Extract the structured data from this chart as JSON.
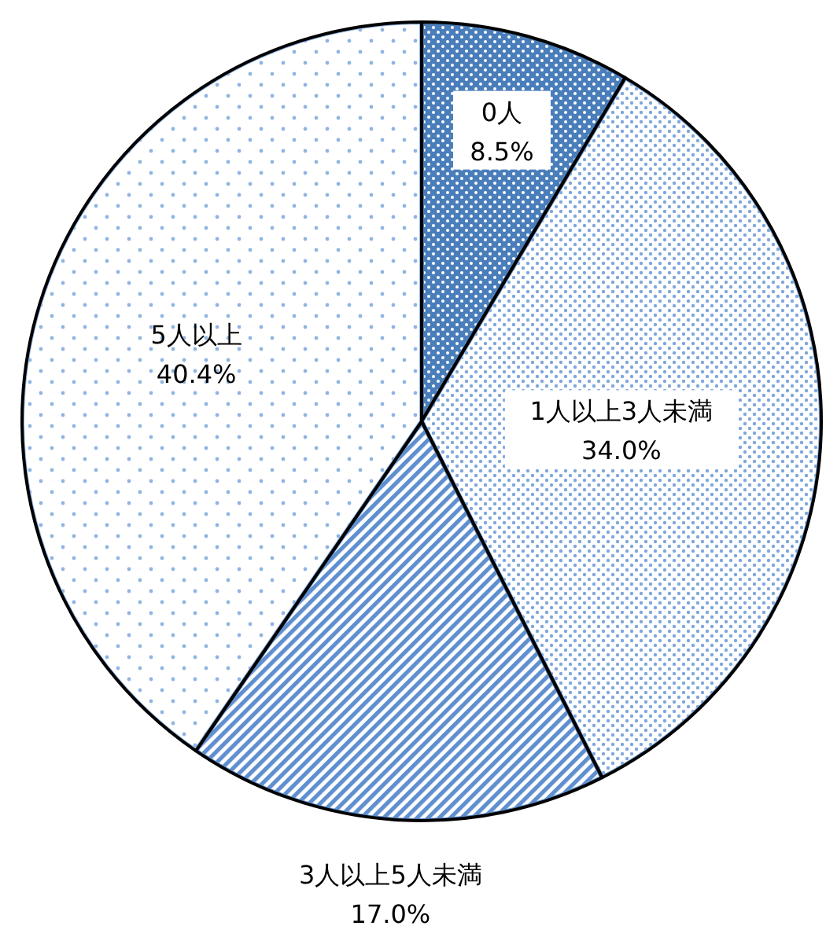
{
  "chart_data": {
    "type": "pie",
    "categories": [
      "0人",
      "1人以上3人未満",
      "3人以上5人未満",
      "5人以上"
    ],
    "values": [
      8.5,
      34.0,
      17.0,
      40.4
    ],
    "value_labels": [
      "8.5%",
      "34.0%",
      "17.0%",
      "40.4%"
    ],
    "colors": [
      "#4a7ebb",
      "#7fa7dc",
      "#5f8fcf",
      "#8fb4e3"
    ]
  }
}
